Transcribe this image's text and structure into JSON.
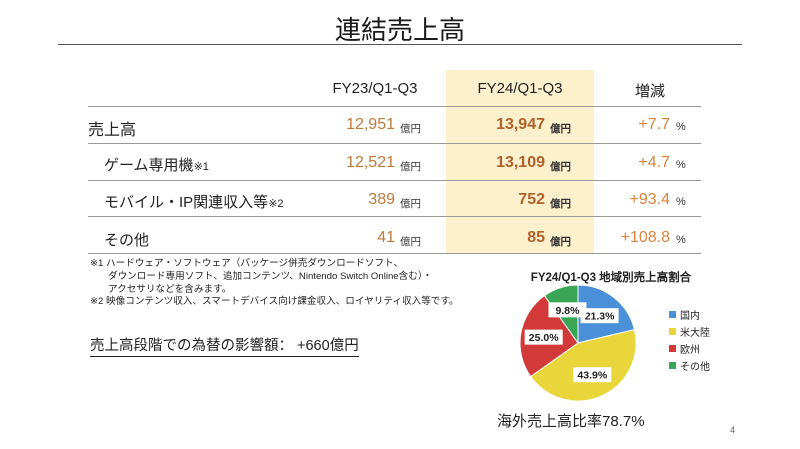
{
  "title": "連結売上高",
  "table": {
    "headers": [
      "FY23/Q1-Q3",
      "FY24/Q1-Q3",
      "増減"
    ],
    "unit": "億円",
    "pct": "%",
    "rows": [
      {
        "label": "売上高",
        "note": "",
        "fy23": "12,951",
        "fy24": "13,947",
        "change": "+7.7"
      },
      {
        "label": "ゲーム専用機",
        "note": "※1",
        "fy23": "12,521",
        "fy24": "13,109",
        "change": "+4.7"
      },
      {
        "label": "モバイル・IP関連収入等",
        "note": "※2",
        "fy23": "389",
        "fy24": "752",
        "change": "+93.4"
      },
      {
        "label": "その他",
        "note": "",
        "fy23": "41",
        "fy24": "85",
        "change": "+108.8"
      }
    ]
  },
  "notes": [
    "※1 ハードウェア・ソフトウェア（パッケージ併売ダウンロードソフト、",
    "ダウンロード専用ソフト、追加コンテンツ、Nintendo Switch Online含む）・",
    "アクセサリなどを含みます。",
    "※2 映像コンテンツ収入、スマートデバイス向け課金収入、ロイヤリティ収入等です。"
  ],
  "fx_impact": "売上高段階での為替の影響額：  +660億円",
  "chart_data": {
    "type": "pie",
    "title": "FY24/Q1-Q3 地域別売上高割合",
    "labels": [
      "国内",
      "米大陸",
      "欧州",
      "その他"
    ],
    "values": [
      21.3,
      43.9,
      25.0,
      9.8
    ],
    "value_labels": [
      "21.3%",
      "43.9%",
      "25.0%",
      "9.8%"
    ],
    "colors": [
      "#4a90d9",
      "#e8d63a",
      "#d23a3a",
      "#3aa655"
    ],
    "legend_position": "right"
  },
  "overseas_ratio": "海外売上高比率78.7%",
  "page_number": "4"
}
